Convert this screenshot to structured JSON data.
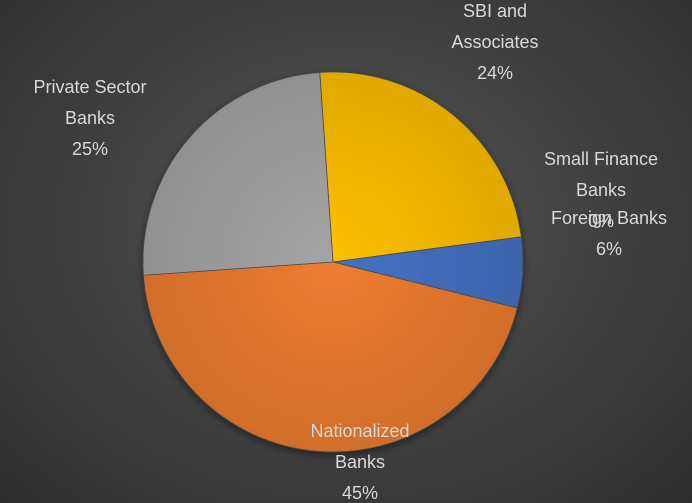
{
  "chart_data": {
    "type": "pie",
    "title": "",
    "slices": [
      {
        "label_lines": [
          "SBI and",
          "Associates"
        ],
        "percent_label": "24%",
        "value": 24,
        "color": "#ffc000"
      },
      {
        "label_lines": [
          "Small Finance",
          "Banks"
        ],
        "percent_label": "0%",
        "value": 0,
        "color": "#5b9bd5"
      },
      {
        "label_lines": [
          "Foreign Banks"
        ],
        "percent_label": "6%",
        "value": 6,
        "color": "#4472c4"
      },
      {
        "label_lines": [
          "Nationalized",
          "Banks"
        ],
        "percent_label": "45%",
        "value": 45,
        "color": "#ed7d31"
      },
      {
        "label_lines": [
          "Private Sector",
          "Banks"
        ],
        "percent_label": "25%",
        "value": 25,
        "color": "#a5a5a5"
      }
    ],
    "legend": "none",
    "data_labels": "category name and percentage"
  }
}
